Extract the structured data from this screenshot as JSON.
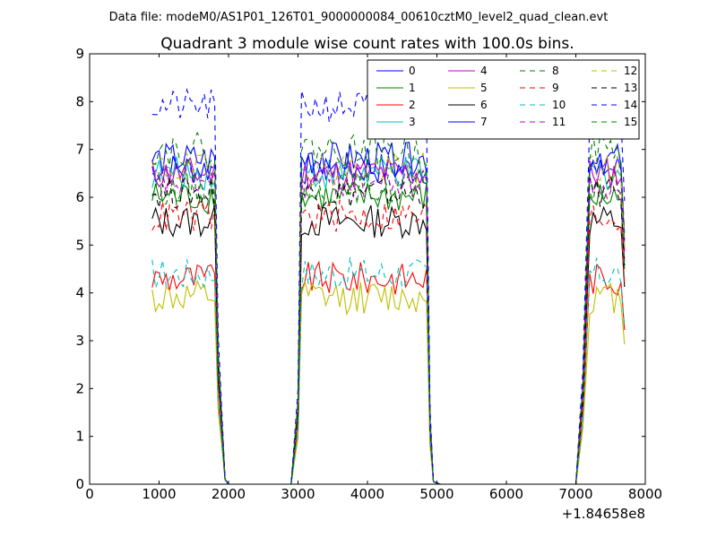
{
  "chart_data": {
    "type": "line",
    "suptitle": "Data file: modeM0/AS1P01_126T01_9000000084_00610cztM0_level2_quad_clean.evt",
    "title": "Quadrant 3 module wise count rates with 100.0s bins.",
    "xlabel": "",
    "ylabel": "",
    "xlim": [
      0,
      8000
    ],
    "ylim": [
      0,
      9
    ],
    "x_offset_label": "+1.84658e8",
    "x_ticks": [
      0,
      1000,
      2000,
      3000,
      4000,
      5000,
      6000,
      7000,
      8000
    ],
    "y_ticks": [
      0,
      1,
      2,
      3,
      4,
      5,
      6,
      7,
      8,
      9
    ],
    "legend_position": "top-right",
    "legend_columns": 4,
    "segments": [
      {
        "start": 900,
        "end": 1800,
        "step": 50
      },
      {
        "start": 3050,
        "end": 4850,
        "step": 50
      },
      {
        "start": 7200,
        "end": 7650,
        "step": 50
      }
    ],
    "gap_edges": {
      "seg1_end": [
        1850,
        1950,
        2000
      ],
      "seg2_start": [
        2900,
        3000
      ],
      "seg2_end": [
        4900,
        4950,
        5050
      ],
      "seg3_start": [
        7000,
        7100
      ]
    },
    "series": [
      {
        "name": "0",
        "color": "#0000ff",
        "dash": "solid",
        "base": 6.6
      },
      {
        "name": "1",
        "color": "#008000",
        "dash": "solid",
        "base": 6.0
      },
      {
        "name": "2",
        "color": "#ff0000",
        "dash": "solid",
        "base": 4.3
      },
      {
        "name": "3",
        "color": "#00bfbf",
        "dash": "solid",
        "base": 6.5
      },
      {
        "name": "4",
        "color": "#bf00bf",
        "dash": "solid",
        "base": 6.5
      },
      {
        "name": "5",
        "color": "#bfbf00",
        "dash": "solid",
        "base": 3.9
      },
      {
        "name": "6",
        "color": "#000000",
        "dash": "solid",
        "base": 5.5
      },
      {
        "name": "7",
        "color": "#0000ff",
        "dash": "solid",
        "base": 6.8
      },
      {
        "name": "8",
        "color": "#008000",
        "dash": "dashed",
        "base": 6.2
      },
      {
        "name": "9",
        "color": "#ff0000",
        "dash": "dashed",
        "base": 5.6
      },
      {
        "name": "10",
        "color": "#00bfbf",
        "dash": "dashed",
        "base": 4.4
      },
      {
        "name": "11",
        "color": "#bf00bf",
        "dash": "dashed",
        "base": 6.3
      },
      {
        "name": "12",
        "color": "#bfbf00",
        "dash": "dashed",
        "base": 6.6
      },
      {
        "name": "13",
        "color": "#000000",
        "dash": "dashed",
        "base": 6.1
      },
      {
        "name": "14",
        "color": "#0000ff",
        "dash": "dashed",
        "base": 7.9
      },
      {
        "name": "15",
        "color": "#008000",
        "dash": "dashed",
        "base": 7.0
      }
    ]
  }
}
